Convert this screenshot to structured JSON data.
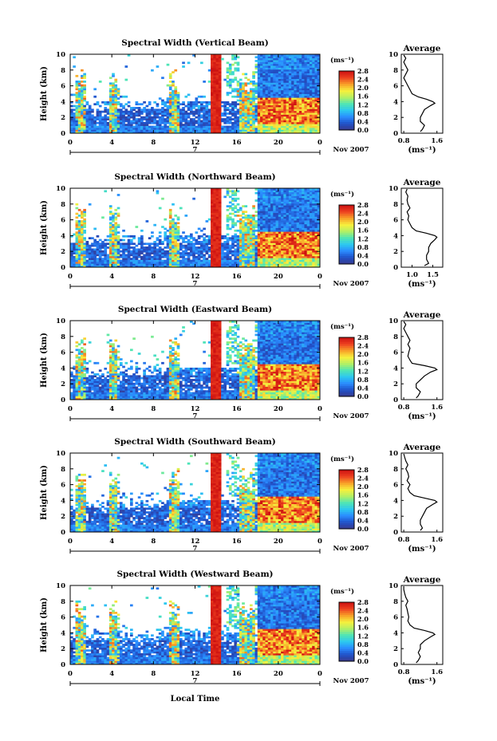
{
  "chart_data": {
    "type": "heatmap",
    "figure": {
      "xlabel_bottom": "Local Time",
      "date_label": "Nov 2007",
      "day_label": "7"
    },
    "colorbar": {
      "unit": "(ms⁻¹)",
      "ticks": [
        "0.0",
        "0.4",
        "0.8",
        "1.2",
        "1.6",
        "2.0",
        "2.4",
        "2.8"
      ],
      "range": [
        0.0,
        2.8
      ],
      "colormap": [
        "#3a3a8c",
        "#2050c8",
        "#2a8cff",
        "#2cc8f0",
        "#50e6b4",
        "#b4f064",
        "#f8f03c",
        "#f8a028",
        "#ee4020",
        "#cc1010"
      ]
    },
    "main_axes": {
      "ylabel": "Height (km)",
      "ylim": [
        0,
        10
      ],
      "yticks": [
        "0",
        "2",
        "4",
        "6",
        "8",
        "10"
      ],
      "xlim": [
        0,
        24
      ],
      "xticks": [
        "0",
        "4",
        "8",
        "12",
        "16",
        "20",
        "0"
      ]
    },
    "avg_axes": {
      "title": "Average",
      "ylim": [
        0,
        10
      ],
      "yticks": [
        "0",
        "2",
        "4",
        "6",
        "8",
        "10"
      ],
      "xlabel": "(ms⁻¹)"
    },
    "panels": [
      {
        "title": "Spectral Width (Vertical Beam)",
        "avg_xticks": [
          "0.8",
          "1.6"
        ],
        "avg_xlim": [
          0.8,
          1.6
        ],
        "avg_profile": {
          "height_km": [
            0.2,
            0.5,
            1.0,
            1.5,
            2.0,
            2.5,
            3.0,
            3.5,
            3.8,
            4.0,
            4.3,
            4.6,
            5.0,
            5.5,
            6.0,
            6.5,
            7.0,
            7.5,
            8.0,
            8.5,
            9.0,
            9.5,
            9.9
          ],
          "width_ms": [
            1.2,
            1.25,
            1.3,
            1.2,
            1.2,
            1.25,
            1.3,
            1.45,
            1.55,
            1.5,
            1.35,
            1.15,
            1.0,
            0.95,
            0.9,
            0.85,
            0.8,
            0.85,
            0.9,
            0.85,
            0.8,
            0.85,
            0.8
          ]
        }
      },
      {
        "title": "Spectral Width (Northward Beam)",
        "avg_xticks": [
          "1.0",
          "1.5"
        ],
        "avg_xlim": [
          0.8,
          1.6
        ],
        "avg_profile": {
          "height_km": [
            0.2,
            0.5,
            1.0,
            1.5,
            2.0,
            2.5,
            3.0,
            3.5,
            3.8,
            4.0,
            4.3,
            4.6,
            5.0,
            5.5,
            6.0,
            6.5,
            7.0,
            7.5,
            8.0,
            8.5,
            9.0,
            9.5,
            9.9
          ],
          "width_ms": [
            1.3,
            1.4,
            1.35,
            1.35,
            1.4,
            1.4,
            1.45,
            1.55,
            1.6,
            1.55,
            1.35,
            1.1,
            1.0,
            0.95,
            0.9,
            0.92,
            0.88,
            0.95,
            0.9,
            0.88,
            0.9,
            0.85,
            0.88
          ]
        }
      },
      {
        "title": "Spectral Width (Eastward Beam)",
        "avg_xticks": [
          "0.8",
          "1.6"
        ],
        "avg_xlim": [
          0.8,
          1.6
        ],
        "avg_profile": {
          "height_km": [
            0.2,
            0.5,
            1.0,
            1.5,
            2.0,
            2.5,
            3.0,
            3.5,
            3.8,
            4.0,
            4.3,
            4.6,
            5.0,
            5.5,
            6.0,
            6.5,
            7.0,
            7.5,
            8.0,
            8.5,
            9.0,
            9.5,
            9.9
          ],
          "width_ms": [
            1.1,
            1.15,
            1.2,
            1.1,
            1.1,
            1.2,
            1.3,
            1.45,
            1.6,
            1.55,
            1.3,
            1.0,
            0.95,
            0.9,
            0.92,
            0.95,
            0.9,
            0.95,
            0.9,
            0.85,
            0.8,
            0.85,
            0.8
          ]
        }
      },
      {
        "title": "Spectral Width (Southward Beam)",
        "avg_xticks": [
          "0.8",
          "1.6"
        ],
        "avg_xlim": [
          0.8,
          1.6
        ],
        "avg_profile": {
          "height_km": [
            0.2,
            0.5,
            1.0,
            1.5,
            2.0,
            2.5,
            3.0,
            3.5,
            3.8,
            4.0,
            4.3,
            4.6,
            5.0,
            5.5,
            6.0,
            6.5,
            7.0,
            7.5,
            8.0,
            8.5,
            9.0,
            9.5,
            9.9
          ],
          "width_ms": [
            1.2,
            1.25,
            1.2,
            1.2,
            1.25,
            1.3,
            1.35,
            1.5,
            1.6,
            1.55,
            1.3,
            1.05,
            0.95,
            0.9,
            0.95,
            0.88,
            0.92,
            0.9,
            0.85,
            0.9,
            0.85,
            0.82,
            0.8
          ]
        }
      },
      {
        "title": "Spectral Width (Westward Beam)",
        "avg_xticks": [
          "0.8",
          "1.6"
        ],
        "avg_xlim": [
          0.8,
          1.6
        ],
        "avg_profile": {
          "height_km": [
            0.2,
            0.5,
            1.0,
            1.5,
            2.0,
            2.5,
            3.0,
            3.5,
            3.8,
            4.0,
            4.3,
            4.6,
            5.0,
            5.5,
            6.0,
            6.5,
            7.0,
            7.5,
            8.0,
            8.5,
            9.0,
            9.5,
            9.9
          ],
          "width_ms": [
            1.1,
            1.15,
            1.2,
            1.15,
            1.2,
            1.2,
            1.3,
            1.45,
            1.55,
            1.5,
            1.3,
            1.05,
            0.95,
            0.9,
            0.92,
            0.9,
            0.88,
            0.85,
            0.9,
            0.85,
            0.82,
            0.8,
            0.8
          ]
        }
      }
    ],
    "heatmap_features": {
      "note_units": "time in local hours (0-24), height in km",
      "red_column_hours": [
        13.6,
        14.6
      ],
      "storm_columns_hours": [
        1.0,
        4.2,
        10.0,
        16.6,
        17.4
      ],
      "upper_level_onset_hours": 18,
      "high_width_layer_km": [
        1.0,
        4.6
      ]
    }
  }
}
